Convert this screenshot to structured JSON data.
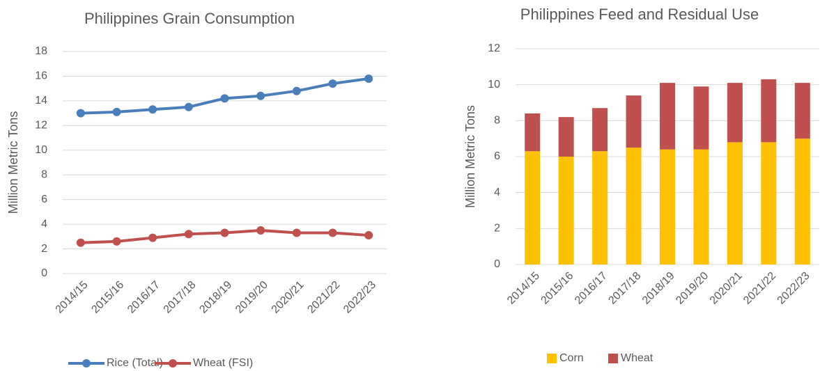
{
  "chart_data": [
    {
      "type": "line",
      "title": "Philippines Grain Consumption",
      "y_label": "Million Metric Tons",
      "categories": [
        "2014/15",
        "2015/16",
        "2016/17",
        "2017/18",
        "2018/19",
        "2019/20",
        "2020/21",
        "2021/22",
        "2022/23"
      ],
      "series": [
        {
          "name": "Rice (Total)",
          "color": "#4a7ebb",
          "values": [
            13,
            13.1,
            13.3,
            13.5,
            14.2,
            14.4,
            14.8,
            15.4,
            15.8
          ]
        },
        {
          "name": "Wheat (FSI)",
          "color": "#c0504d",
          "values": [
            2.5,
            2.6,
            2.9,
            3.2,
            3.3,
            3.5,
            3.3,
            3.3,
            3.1
          ]
        }
      ],
      "ylim": [
        0,
        18
      ],
      "yticks": [
        0,
        2,
        4,
        6,
        8,
        10,
        12,
        14,
        16,
        18
      ],
      "grid": true
    },
    {
      "type": "stacked_bar",
      "title": "Philippines Feed and Residual Use",
      "y_label": "Million Metric Tons",
      "categories": [
        "2014/15",
        "2015/16",
        "2016/17",
        "2017/18",
        "2018/19",
        "2019/20",
        "2020/21",
        "2021/22",
        "2022/23"
      ],
      "series": [
        {
          "name": "Corn",
          "color": "#ffc000",
          "values": [
            6.3,
            6.0,
            6.3,
            6.5,
            6.4,
            6.4,
            6.8,
            6.8,
            7.0
          ]
        },
        {
          "name": "Wheat",
          "color": "#c0504d",
          "values": [
            2.1,
            2.2,
            2.4,
            2.9,
            3.7,
            3.5,
            3.3,
            3.5,
            3.1
          ]
        }
      ],
      "ylim": [
        0,
        12
      ],
      "yticks": [
        0,
        2,
        4,
        6,
        8,
        10,
        12
      ],
      "grid": true
    }
  ]
}
